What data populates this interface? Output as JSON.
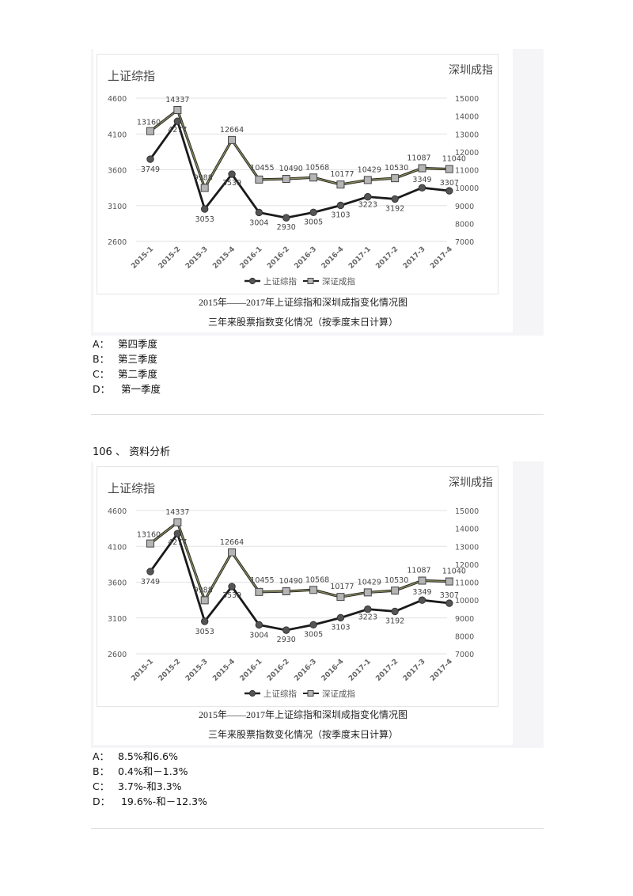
{
  "question_prev": {
    "figure": {
      "left_axis_title": "上证综指",
      "right_axis_title": "深圳成指",
      "caption_line1": "2015年——2017年上证综指和深圳成指变化情况图",
      "caption_line2": "三年来股票指数变化情况（按季度末日计算）"
    },
    "options": [
      {
        "letter": "A：",
        "text": "第四季度"
      },
      {
        "letter": "B：",
        "text": "第三季度"
      },
      {
        "letter": "C：",
        "text": "第二季度"
      },
      {
        "letter": "D：",
        "text": " 第一季度"
      }
    ]
  },
  "question_106": {
    "title": "106 、 资料分析",
    "figure": {
      "left_axis_title": "上证综指",
      "right_axis_title": "深圳成指",
      "caption_line1": "2015年——2017年上证综指和深圳成指变化情况图",
      "caption_line2": "三年来股票指数变化情况（按季度末日计算）"
    },
    "options": [
      {
        "letter": "A：",
        "text": "8.5%和6.6%"
      },
      {
        "letter": "B：",
        "text": "0.4%和－1.3%"
      },
      {
        "letter": "C：",
        "text": "3.7%-和3.3%"
      },
      {
        "letter": "D：",
        "text": " 19.6%-和－12.3%"
      }
    ]
  },
  "colors": {
    "shanghai_line": "#1a1a1a",
    "shanghai_marker": "#555555",
    "shenzhen_line": "#4a4a2e",
    "shenzhen_marker": "#b5b5b5",
    "grid": "#e2e2e2",
    "axis_text": "#555555"
  },
  "chart_data": [
    {
      "type": "line",
      "title": "2015年——2017年上证综指和深圳成指变化情况图",
      "subtitle": "三年来股票指数变化情况（按季度末日计算）",
      "categories": [
        "2015-1",
        "2015-2",
        "2015-3",
        "2015-4",
        "2016-1",
        "2016-2",
        "2016-3",
        "2016-4",
        "2017-1",
        "2017-2",
        "2017-3",
        "2017-4"
      ],
      "series": [
        {
          "name": "上证综指",
          "axis": "left",
          "marker": "circle",
          "values": [
            3749,
            4277,
            3053,
            3539,
            3004,
            2930,
            3005,
            3103,
            3223,
            3192,
            3349,
            3307
          ]
        },
        {
          "name": "深证成指",
          "axis": "right",
          "marker": "square",
          "values": [
            13160,
            14337,
            9988,
            12664,
            10455,
            10490,
            10568,
            10177,
            10429,
            10530,
            11087,
            11040
          ]
        }
      ],
      "ylabel": "上证综指",
      "y2label": "深圳成指",
      "ylim": [
        2600,
        4600
      ],
      "yticks": [
        2600,
        3100,
        3600,
        4100,
        4600
      ],
      "y2lim": [
        7000,
        15000
      ],
      "y2ticks": [
        7000,
        8000,
        9000,
        10000,
        11000,
        12000,
        13000,
        14000,
        15000
      ],
      "grid": true,
      "legend_position": "bottom"
    },
    {
      "type": "line",
      "title": "2015年——2017年上证综指和深圳成指变化情况图",
      "subtitle": "三年来股票指数变化情况（按季度末日计算）",
      "categories": [
        "2015-1",
        "2015-2",
        "2015-3",
        "2015-4",
        "2016-1",
        "2016-2",
        "2016-3",
        "2016-4",
        "2017-1",
        "2017-2",
        "2017-3",
        "2017-4"
      ],
      "series": [
        {
          "name": "上证综指",
          "axis": "left",
          "marker": "circle",
          "values": [
            3749,
            4277,
            3053,
            3539,
            3004,
            2930,
            3005,
            3103,
            3223,
            3192,
            3349,
            3307
          ]
        },
        {
          "name": "深证成指",
          "axis": "right",
          "marker": "square",
          "values": [
            13160,
            14337,
            9988,
            12664,
            10455,
            10490,
            10568,
            10177,
            10429,
            10530,
            11087,
            11040
          ]
        }
      ],
      "ylabel": "上证综指",
      "y2label": "深圳成指",
      "ylim": [
        2600,
        4600
      ],
      "yticks": [
        2600,
        3100,
        3600,
        4100,
        4600
      ],
      "y2lim": [
        7000,
        15000
      ],
      "y2ticks": [
        7000,
        8000,
        9000,
        10000,
        11000,
        12000,
        13000,
        14000,
        15000
      ],
      "grid": true,
      "legend_position": "bottom"
    }
  ]
}
